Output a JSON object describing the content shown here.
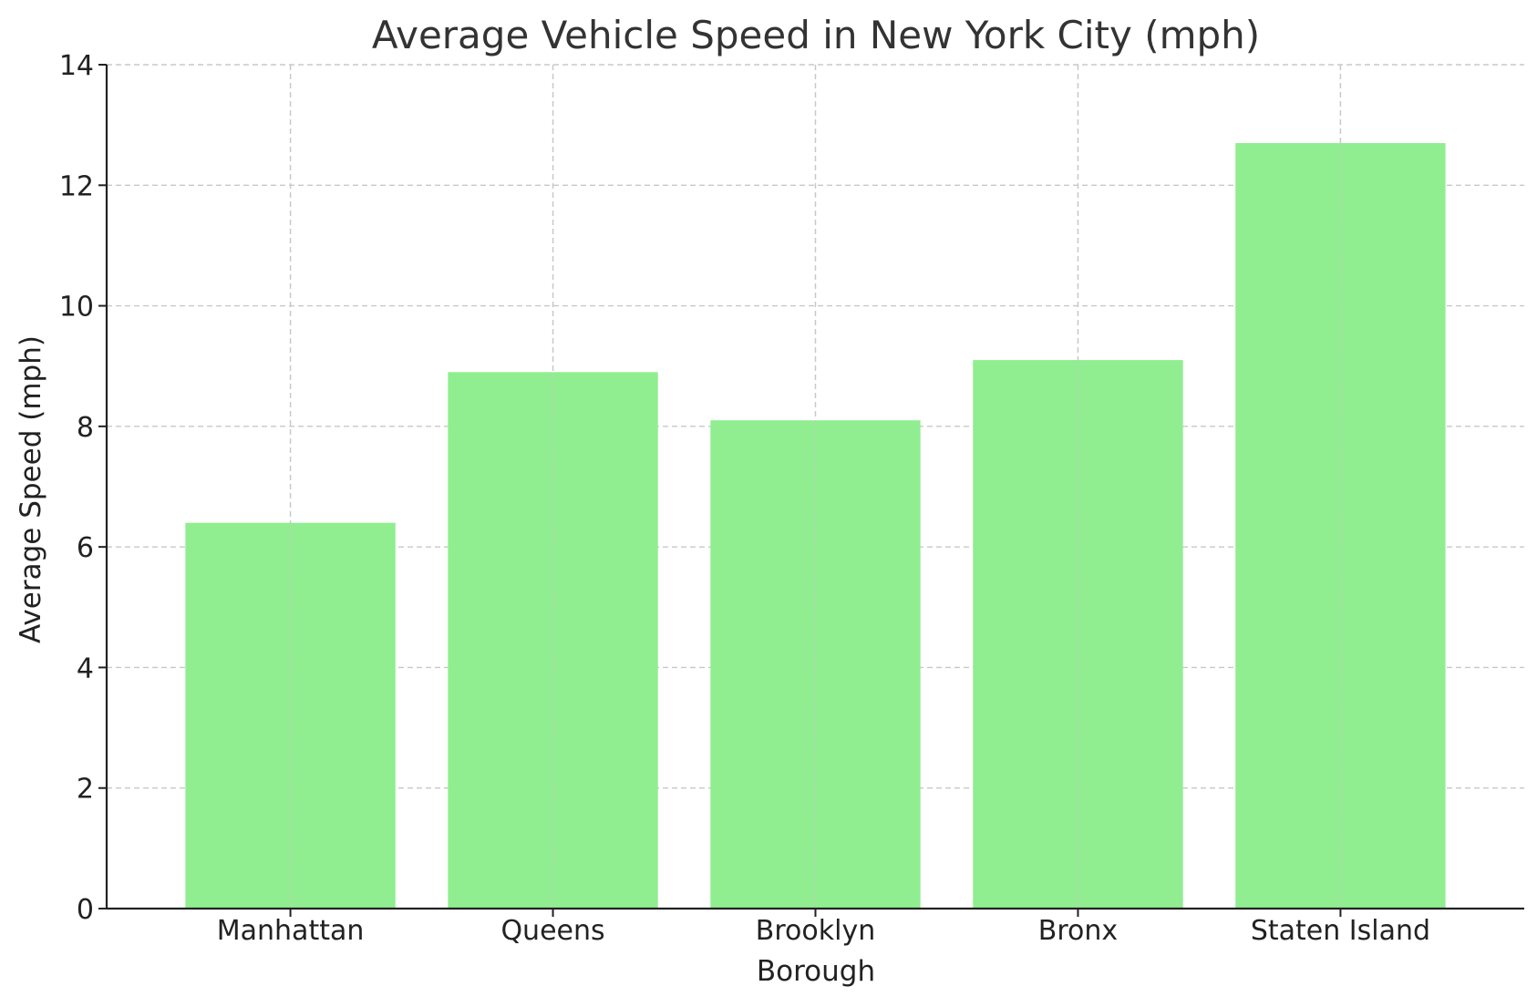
{
  "chart_data": {
    "type": "bar",
    "title": "Average Vehicle Speed in New York City (mph)",
    "xlabel": "Borough",
    "ylabel": "Average Speed (mph)",
    "categories": [
      "Manhattan",
      "Queens",
      "Brooklyn",
      "Bronx",
      "Staten Island"
    ],
    "values": [
      6.4,
      8.9,
      8.1,
      9.1,
      12.7
    ],
    "ylim": [
      0,
      14
    ],
    "yticks": [
      "0",
      "2",
      "4",
      "6",
      "8",
      "10",
      "12",
      "14"
    ],
    "grid": true,
    "bar_color": "#90ee90",
    "grid_color": "#c8c8c8",
    "axis_color": "#222222"
  }
}
